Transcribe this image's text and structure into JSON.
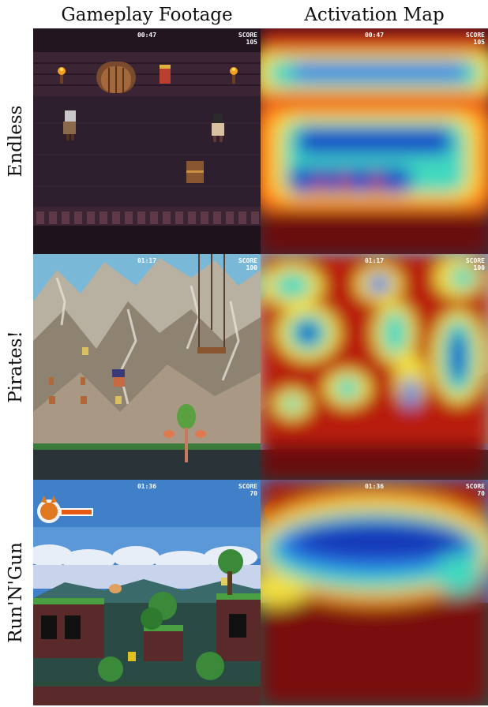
{
  "columns": [
    "Gameplay Footage",
    "Activation Map"
  ],
  "rows": [
    {
      "label": "Endless",
      "time": "00:47",
      "score_label": "SCORE",
      "score": "105"
    },
    {
      "label": "Pirates!",
      "time": "01:17",
      "score_label": "SCORE",
      "score": "100"
    },
    {
      "label": "Run'N'Gun",
      "time": "01:36",
      "score_label": "SCORE",
      "score": "70"
    }
  ]
}
